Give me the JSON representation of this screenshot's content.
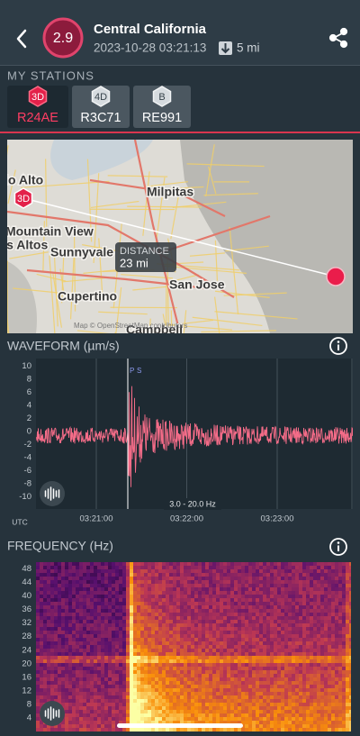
{
  "header": {
    "magnitude": "2.9",
    "location": "Central California",
    "datetime": "2023-10-28 03:21:13",
    "depth": "5 mi"
  },
  "stations": {
    "label": "MY STATIONS",
    "items": [
      {
        "badge": "3D",
        "name": "R24AE"
      },
      {
        "badge": "4D",
        "name": "R3C71"
      },
      {
        "badge": "B",
        "name": "RE991"
      }
    ]
  },
  "map": {
    "places": [
      "Palo Alto",
      "Milpitas",
      "Mountain View",
      "Los Altos",
      "Sunnyvale",
      "Cupertino",
      "San Jose",
      "Campbell"
    ],
    "station_badge": "3D",
    "distance_label": "DISTANCE",
    "distance": "23 mi",
    "attribution": "Map © OpenStreetMap contributors"
  },
  "waveform": {
    "title": "WAVEFORM (µm/s)",
    "ylim": [
      -11.9,
      11.2
    ],
    "yticks": [
      10,
      8,
      6,
      4,
      2,
      0,
      -2,
      -4,
      -6,
      -8,
      -10
    ],
    "x_unit": "UTC",
    "xticks": [
      "03:21:00",
      "03:22:00",
      "03:23:00"
    ],
    "phases": [
      "P",
      "S"
    ],
    "filter": "3.0 - 20.0 Hz"
  },
  "frequency": {
    "title": "FREQUENCY (Hz)",
    "ylim": [
      0,
      50
    ],
    "yticks": [
      48,
      44,
      40,
      36,
      32,
      28,
      24,
      20,
      16,
      12,
      8,
      4
    ]
  }
}
